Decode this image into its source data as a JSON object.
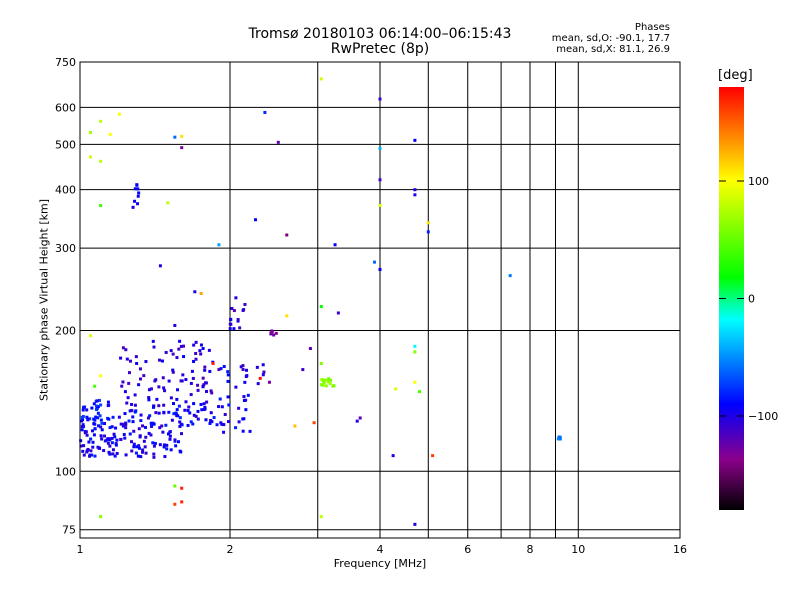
{
  "header": {
    "title_line1": "Tromsø 20180103 06:14:00–06:15:43",
    "title_line2": "RwPretec (8p)"
  },
  "info": {
    "title": "Phases",
    "line1": "mean, sd,O: -90.1, 17.7",
    "line2": "mean, sd,X:  81.1, 26.9"
  },
  "colorbar": {
    "unit_label": "[deg]",
    "range": [
      -180,
      180
    ],
    "tick_labels": [
      "100",
      "0",
      "−100"
    ],
    "tick_values": [
      100,
      0,
      -100
    ],
    "colormap": [
      "#000000",
      "#8b008b",
      "#0000ff",
      "#00ffff",
      "#00ff00",
      "#ffff00",
      "#ff0000"
    ]
  },
  "chart_data": {
    "type": "scatter",
    "xlabel": "Frequency [MHz]",
    "ylabel": "Stationary phase Virtual Height [km]",
    "xscale": "log",
    "yscale": "log",
    "xlim": [
      1,
      16
    ],
    "ylim": [
      72,
      750
    ],
    "grid": true,
    "x_ticks": [
      1,
      2,
      4,
      6,
      8,
      10,
      16
    ],
    "x_tick_labels": [
      "1",
      "2",
      "4",
      "6",
      "8",
      "10",
      "16"
    ],
    "x_minor_grid": [
      3,
      5,
      7,
      9
    ],
    "y_ticks": [
      75,
      100,
      200,
      300,
      400,
      500,
      600,
      750
    ],
    "y_tick_labels": [
      "75",
      "100",
      "200",
      "300",
      "400",
      "500",
      "600",
      "750"
    ],
    "color_by": "phase_deg",
    "clusters": [
      {
        "x": [
          1.0,
          1.6
        ],
        "y": [
          107,
          125
        ],
        "n": 120,
        "phase": [
          -110,
          -80
        ]
      },
      {
        "x": [
          1.0,
          1.15
        ],
        "y": [
          125,
          142
        ],
        "n": 40,
        "phase": [
          -100,
          -70
        ]
      },
      {
        "x": [
          1.15,
          1.9
        ],
        "y": [
          125,
          140
        ],
        "n": 70,
        "phase": [
          -110,
          -80
        ]
      },
      {
        "x": [
          1.2,
          1.85
        ],
        "y": [
          138,
          190
        ],
        "n": 90,
        "phase": [
          -115,
          -90
        ]
      },
      {
        "x": [
          1.9,
          2.2
        ],
        "y": [
          120,
          178
        ],
        "n": 30,
        "phase": [
          -110,
          -80
        ]
      },
      {
        "x": [
          2.0,
          2.15
        ],
        "y": [
          200,
          235
        ],
        "n": 15,
        "phase": [
          -120,
          -90
        ]
      },
      {
        "x": [
          2.1,
          2.4
        ],
        "y": [
          150,
          170
        ],
        "n": 10,
        "phase": [
          -120,
          -90
        ]
      },
      {
        "x": [
          2.4,
          2.55
        ],
        "y": [
          195,
          200
        ],
        "n": 6,
        "phase": [
          -140,
          -110
        ]
      },
      {
        "x": [
          1.27,
          1.32
        ],
        "y": [
          365,
          420
        ],
        "n": 8,
        "phase": [
          -100,
          -90
        ]
      },
      {
        "x": [
          3.05,
          3.25
        ],
        "y": [
          152,
          158
        ],
        "n": 18,
        "phase": [
          55,
          70
        ]
      },
      {
        "x": [
          9.0,
          9.3
        ],
        "y": [
          117,
          119
        ],
        "n": 6,
        "phase": [
          -60,
          -40
        ]
      }
    ],
    "points": [
      [
        3.05,
        690,
        85
      ],
      [
        4.0,
        625,
        -110
      ],
      [
        2.35,
        585,
        -80
      ],
      [
        2.5,
        505,
        -120
      ],
      [
        4.0,
        490,
        -40
      ],
      [
        4.7,
        510,
        -90
      ],
      [
        4.0,
        420,
        -115
      ],
      [
        4.7,
        400,
        -100
      ],
      [
        4.7,
        390,
        -100
      ],
      [
        4.0,
        370,
        90
      ],
      [
        1.1,
        370,
        40
      ],
      [
        1.5,
        375,
        80
      ],
      [
        2.25,
        345,
        -90
      ],
      [
        2.6,
        320,
        -140
      ],
      [
        1.9,
        305,
        -45
      ],
      [
        3.25,
        305,
        -90
      ],
      [
        3.9,
        280,
        -60
      ],
      [
        5.0,
        340,
        110
      ],
      [
        5.0,
        325,
        -80
      ],
      [
        4.0,
        270,
        -90
      ],
      [
        7.3,
        262,
        -55
      ],
      [
        1.45,
        275,
        -100
      ],
      [
        1.75,
        240,
        130
      ],
      [
        1.7,
        242,
        -100
      ],
      [
        3.05,
        225,
        20
      ],
      [
        3.3,
        218,
        -110
      ],
      [
        2.6,
        215,
        110
      ],
      [
        1.55,
        205,
        -100
      ],
      [
        1.05,
        195,
        90
      ],
      [
        4.7,
        185,
        -20
      ],
      [
        4.7,
        180,
        60
      ],
      [
        2.9,
        183,
        -120
      ],
      [
        3.05,
        170,
        60
      ],
      [
        2.8,
        165,
        -110
      ],
      [
        1.85,
        170,
        170
      ],
      [
        1.9,
        165,
        -120
      ],
      [
        2.3,
        158,
        175
      ],
      [
        2.4,
        155,
        -130
      ],
      [
        4.3,
        150,
        90
      ],
      [
        4.7,
        155,
        100
      ],
      [
        4.8,
        148,
        40
      ],
      [
        3.65,
        130,
        -120
      ],
      [
        3.6,
        128,
        -100
      ],
      [
        2.7,
        125,
        120
      ],
      [
        2.95,
        127,
        160
      ],
      [
        4.25,
        108,
        -100
      ],
      [
        5.1,
        108,
        160
      ],
      [
        1.1,
        160,
        100
      ],
      [
        1.07,
        152,
        40
      ],
      [
        1.6,
        92,
        170
      ],
      [
        1.55,
        93,
        50
      ],
      [
        1.6,
        86,
        170
      ],
      [
        1.55,
        85,
        160
      ],
      [
        1.1,
        80,
        60
      ],
      [
        3.05,
        80,
        80
      ],
      [
        4.7,
        77,
        -100
      ],
      [
        1.2,
        580,
        100
      ],
      [
        1.1,
        560,
        80
      ],
      [
        1.05,
        530,
        70
      ],
      [
        1.15,
        525,
        100
      ],
      [
        1.6,
        520,
        110
      ],
      [
        1.55,
        518,
        -60
      ],
      [
        1.6,
        492,
        -130
      ],
      [
        1.05,
        470,
        85
      ],
      [
        1.1,
        460,
        80
      ],
      [
        1.3,
        410,
        -90
      ]
    ]
  }
}
